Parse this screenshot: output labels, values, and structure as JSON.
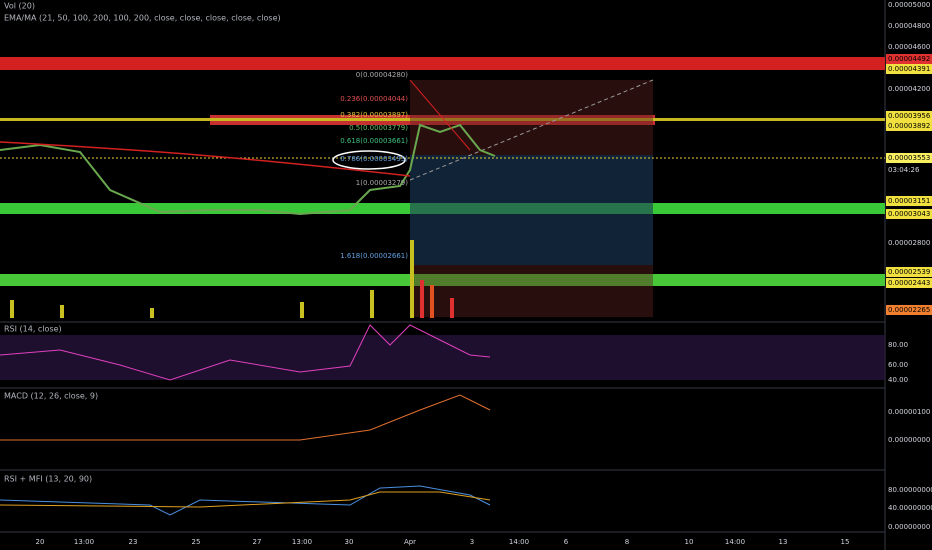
{
  "indicators": {
    "volume": "Vol (20)",
    "ema_ma": "EMA/MA (21, 50, 100, 200, 100, 200, close, close, close, close, close)",
    "rsi": "RSI (14, close)",
    "macd": "MACD (12, 26, close, 9)",
    "rsi_mfi": "RSI + MFI (13, 20, 90)"
  },
  "price_axis": [
    "0.00005000",
    "0.00004800",
    "0.00004600",
    "0.00004492",
    "0.00004391",
    "0.00004200",
    "0.00003956",
    "0.00003892",
    "0.00003553",
    "03:04:26",
    "0.00003151",
    "0.00003043",
    "0.00002800",
    "0.00002539",
    "0.00002443",
    "0.00002265"
  ],
  "fib_labels": [
    "0(0.00004280)",
    "0.236(0.00004044)",
    "0.382(0.00003897)",
    "0.5(0.00003779)",
    "0.618(0.00003661)",
    "0.786(0.00003493)",
    "1(0.00003279)",
    "1.618(0.00002661)"
  ],
  "rsi_axis": [
    "80.00",
    "60.00",
    "40.00"
  ],
  "macd_axis": [
    "0.00000100",
    "0.00000000"
  ],
  "rsi_mfi_axis": [
    "80.00000000",
    "40.00000000",
    "0.00000000"
  ],
  "time_axis": [
    "20",
    "13:00",
    "23",
    "25",
    "27",
    "13:00",
    "30",
    "Apr",
    "3",
    "14:00",
    "6",
    "8",
    "10",
    "14:00",
    "13",
    "15"
  ]
}
